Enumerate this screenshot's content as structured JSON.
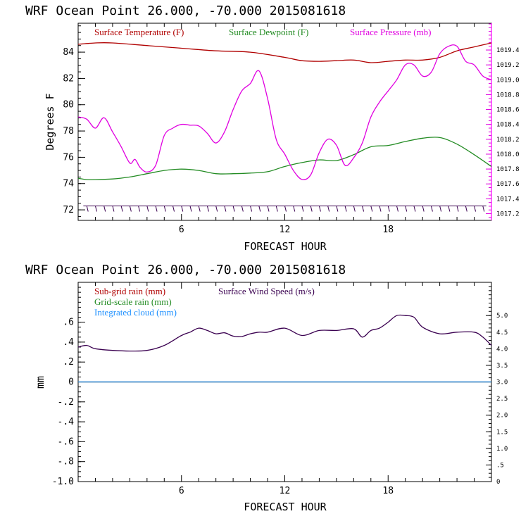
{
  "chart_data": [
    {
      "type": "line",
      "title": "WRF   Ocean Point   26.000, -70.000  2015081618",
      "xlabel": "FORECAST HOUR",
      "ylabel": "Degrees F",
      "xlim": [
        0,
        24
      ],
      "xticks": [
        6,
        12,
        18
      ],
      "ylim": [
        71.2,
        86.2
      ],
      "yticks": [
        72,
        74,
        76,
        78,
        80,
        82,
        84
      ],
      "y2lim": [
        1017.11,
        1019.76
      ],
      "y2ticks": [
        "1017.2",
        "1017.4",
        "1017.6",
        "1017.8",
        "1018.0",
        "1018.2",
        "1018.4",
        "1018.6",
        "1018.8",
        "1019.0",
        "1019.2",
        "1019.4"
      ],
      "grid": false,
      "legend_position": "top",
      "series": [
        {
          "name": "Surface Temperature (F)",
          "color": "#b00000",
          "axis": "left",
          "x": [
            0,
            1,
            2,
            4,
            6,
            8,
            10,
            12,
            13,
            14,
            15,
            16,
            17,
            18,
            19,
            20,
            21,
            22,
            23,
            24
          ],
          "y": [
            84.6,
            84.7,
            84.7,
            84.5,
            84.3,
            84.1,
            84.0,
            83.6,
            83.35,
            83.3,
            83.35,
            83.4,
            83.2,
            83.3,
            83.4,
            83.4,
            83.6,
            84.1,
            84.4,
            84.7
          ]
        },
        {
          "name": "Surface Dewpoint (F)",
          "color": "#228b22",
          "axis": "left",
          "x": [
            0,
            0.5,
            1,
            2,
            3,
            4,
            5,
            6,
            7,
            8,
            9,
            10,
            11,
            12,
            13,
            14,
            15,
            16,
            17,
            18,
            19,
            20,
            21,
            22,
            23,
            24
          ],
          "y": [
            74.4,
            74.3,
            74.3,
            74.35,
            74.5,
            74.75,
            75.0,
            75.1,
            75.0,
            74.75,
            74.75,
            74.8,
            74.9,
            75.3,
            75.6,
            75.8,
            75.75,
            76.2,
            76.8,
            76.9,
            77.2,
            77.45,
            77.5,
            77.0,
            76.2,
            75.3
          ]
        },
        {
          "name": "Surface Pressure (mb)",
          "color": "#e000e0",
          "axis": "right",
          "x": [
            0,
            0.5,
            1,
            1.5,
            2,
            2.5,
            3,
            3.3,
            3.6,
            4,
            4.5,
            5,
            5.5,
            6,
            6.5,
            7,
            7.5,
            8,
            8.5,
            9,
            9.5,
            10,
            10.5,
            11,
            11.5,
            12,
            12.5,
            13,
            13.5,
            14,
            14.5,
            15,
            15.5,
            16,
            16.5,
            17,
            17.5,
            18,
            18.5,
            19,
            19.5,
            20,
            20.5,
            21,
            21.5,
            22,
            22.5,
            23,
            23.5,
            24
          ],
          "y": [
            1018.5,
            1018.47,
            1018.35,
            1018.49,
            1018.3,
            1018.1,
            1017.88,
            1017.93,
            1017.82,
            1017.76,
            1017.85,
            1018.25,
            1018.35,
            1018.4,
            1018.39,
            1018.38,
            1018.28,
            1018.15,
            1018.3,
            1018.6,
            1018.85,
            1018.95,
            1019.12,
            1018.75,
            1018.2,
            1018.0,
            1017.78,
            1017.66,
            1017.72,
            1018.02,
            1018.2,
            1018.12,
            1017.85,
            1017.95,
            1018.15,
            1018.5,
            1018.7,
            1018.85,
            1019.0,
            1019.2,
            1019.2,
            1019.05,
            1019.1,
            1019.35,
            1019.45,
            1019.45,
            1019.25,
            1019.2,
            1019.05,
            1019.0
          ]
        }
      ],
      "wind_barbs_at_y": 72.3
    },
    {
      "type": "line",
      "title": "WRF   Ocean Point   26.000, -70.000  2015081618",
      "xlabel": "FORECAST HOUR",
      "ylabel": "mm",
      "xlim": [
        0,
        24
      ],
      "xticks": [
        6,
        12,
        18
      ],
      "ylim": [
        -1.0,
        1.0
      ],
      "yticks": [
        ".6",
        ".4",
        ".2",
        "0",
        "-.2",
        "-.4",
        "-.6",
        "-.8",
        "-1.0"
      ],
      "y2lim": [
        0,
        6.0
      ],
      "y2ticks": [
        "5.0",
        "4.5",
        "4.0",
        "3.5",
        "3.0",
        "2.5",
        "2.0",
        "1.5",
        "1.0",
        ".5",
        "0"
      ],
      "grid": false,
      "legend_position": "top",
      "series": [
        {
          "name": "Sub-grid rain (mm)",
          "color": "#b00000",
          "axis": "left",
          "x": [
            0,
            24
          ],
          "y": [
            0,
            0
          ]
        },
        {
          "name": "Grid-scale rain (mm)",
          "color": "#228b22",
          "axis": "left",
          "x": [
            0,
            24
          ],
          "y": [
            0,
            0
          ]
        },
        {
          "name": "Integrated cloud (mm)",
          "color": "#1e90ff",
          "axis": "left",
          "x": [
            0,
            24
          ],
          "y": [
            0,
            0
          ]
        },
        {
          "name": "Surface Wind Speed (m/s)",
          "color": "#3a0050",
          "axis": "right",
          "x": [
            0,
            0.5,
            1,
            2,
            3,
            4,
            5,
            6,
            6.5,
            7,
            7.5,
            8,
            8.5,
            9,
            9.5,
            10,
            10.5,
            11,
            12,
            13,
            14,
            15,
            16,
            16.5,
            17,
            17.5,
            18,
            18.5,
            19,
            19.5,
            20,
            21,
            22,
            23,
            23.5,
            24
          ],
          "y": [
            4.05,
            4.1,
            4.0,
            3.95,
            3.93,
            3.95,
            4.1,
            4.4,
            4.5,
            4.62,
            4.55,
            4.45,
            4.48,
            4.38,
            4.37,
            4.45,
            4.5,
            4.5,
            4.62,
            4.4,
            4.55,
            4.55,
            4.6,
            4.35,
            4.55,
            4.62,
            4.8,
            5.0,
            5.0,
            4.95,
            4.65,
            4.45,
            4.5,
            4.5,
            4.35,
            4.1
          ]
        }
      ]
    }
  ]
}
